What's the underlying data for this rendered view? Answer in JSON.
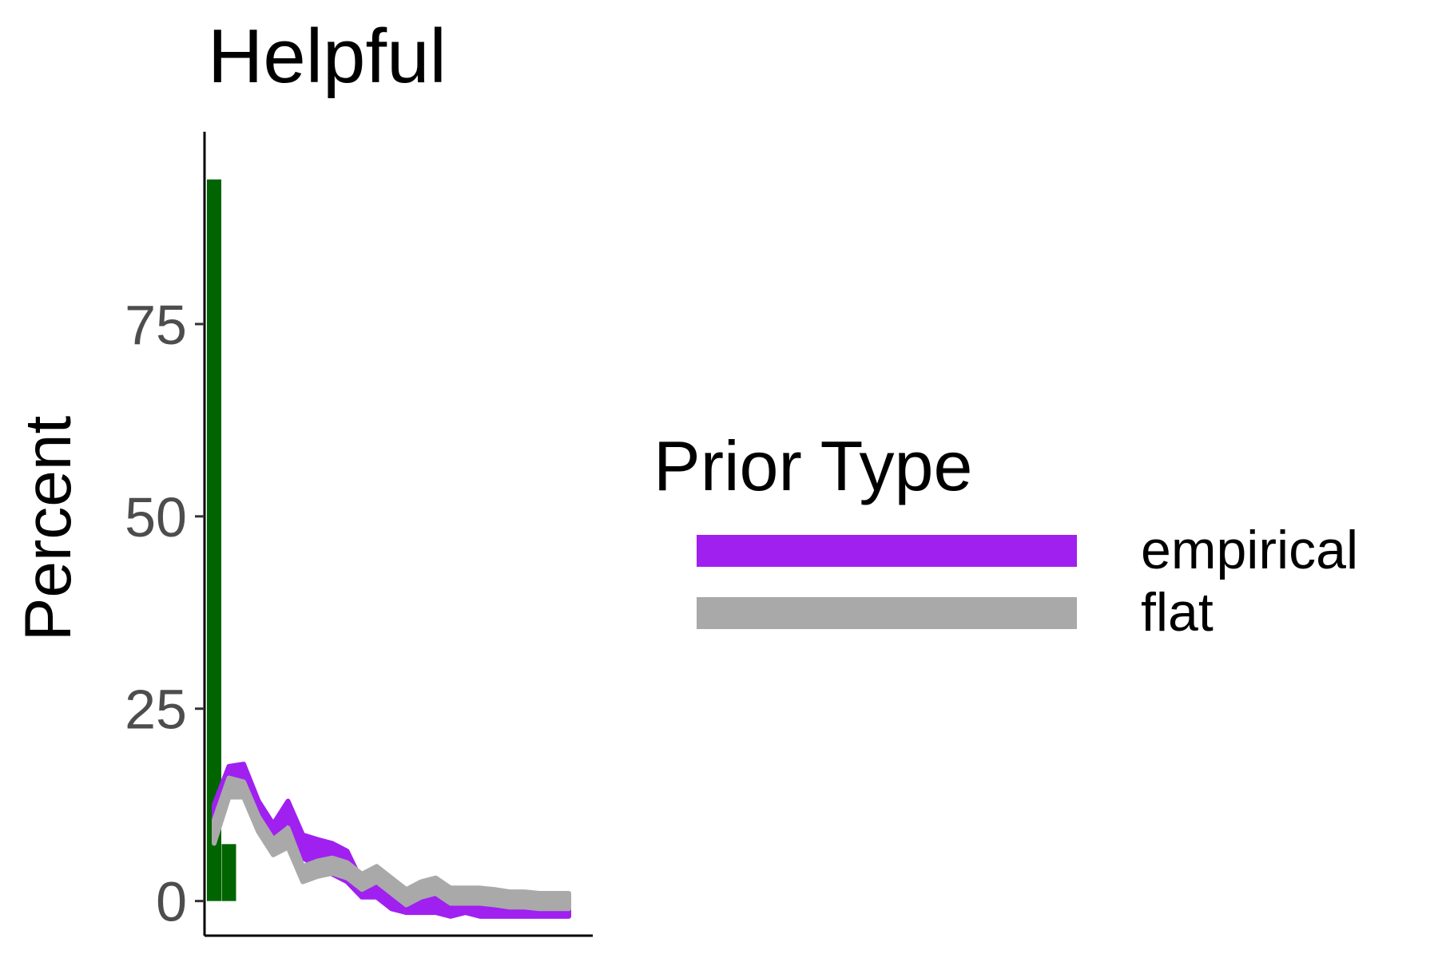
{
  "chart_data": {
    "type": "line",
    "title": "Helpful",
    "ylabel": "Percent",
    "xlabel": "",
    "ylim": [
      -4.5,
      100
    ],
    "y_ticks": [
      0,
      25,
      50,
      75
    ],
    "grid": false,
    "legend_position": "right",
    "legend_title": "Prior Type",
    "bars": [
      {
        "x": 1,
        "value": 93.8
      },
      {
        "x": 2,
        "value": 7.4
      }
    ],
    "bar_color": "#006400",
    "series": [
      {
        "name": "empirical",
        "color": "#a020f0",
        "x": [
          1,
          2,
          3,
          4,
          5,
          6,
          7,
          8,
          9,
          10,
          11,
          12,
          13,
          14,
          15,
          16,
          17,
          18,
          19,
          20,
          21,
          22,
          23,
          24,
          25
        ],
        "lower": [
          9.5,
          15.5,
          15.8,
          11,
          8,
          10.5,
          5.6,
          4.5,
          3.5,
          2.5,
          0.5,
          0.5,
          -1,
          -1.5,
          -1.5,
          -1.5,
          -2,
          -1.5,
          -2,
          -2,
          -2,
          -2,
          -2,
          -2,
          -2
        ],
        "upper": [
          12.5,
          17.5,
          17.8,
          13,
          10,
          13,
          8.6,
          8,
          7.5,
          6.5,
          2.5,
          2.5,
          1,
          0.5,
          0.5,
          0.5,
          0,
          0.5,
          0,
          0,
          0,
          0,
          0,
          0,
          0
        ]
      },
      {
        "name": "flat",
        "color": "#a9a9a9",
        "x": [
          1,
          2,
          3,
          4,
          5,
          6,
          7,
          8,
          9,
          10,
          11,
          12,
          13,
          14,
          15,
          16,
          17,
          18,
          19,
          20,
          21,
          22,
          23,
          24,
          25
        ],
        "lower": [
          7.5,
          13.5,
          13.5,
          9,
          6,
          7,
          2.5,
          3.2,
          3.6,
          3,
          1.5,
          2.5,
          1,
          -0.5,
          0.5,
          1,
          -0.3,
          -0.3,
          -0.3,
          -0.5,
          -0.8,
          -0.8,
          -1,
          -1,
          -1
        ],
        "upper": [
          10.5,
          16,
          15.5,
          11,
          8,
          9.5,
          4.5,
          5.2,
          5.6,
          5,
          3.5,
          4.5,
          3,
          1.5,
          2.5,
          3,
          1.7,
          1.7,
          1.7,
          1.5,
          1.2,
          1.2,
          1,
          1,
          1
        ]
      }
    ]
  }
}
